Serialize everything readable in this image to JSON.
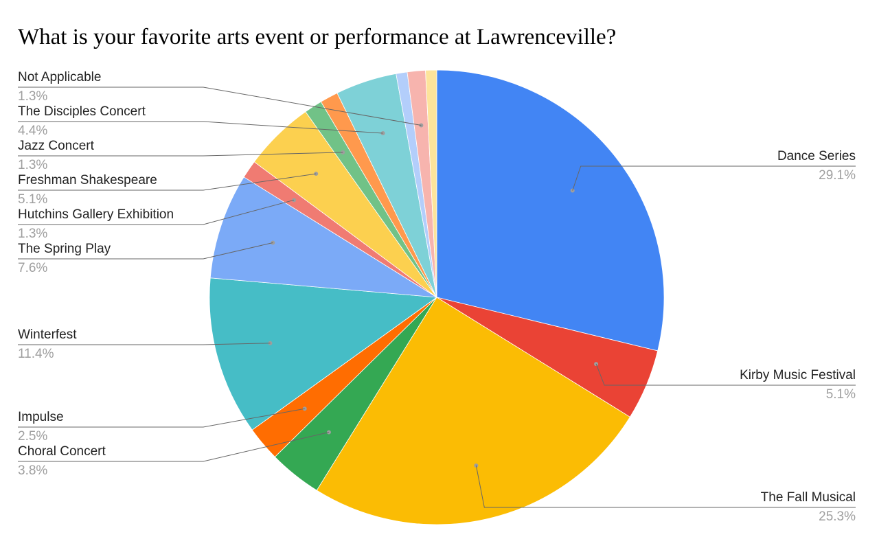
{
  "chart_data": {
    "type": "pie",
    "title": "What is your favorite arts event or performance at Lawrenceville?",
    "slices": [
      {
        "label": "Dance Series",
        "percent_label": "29.1%",
        "value": 29.1,
        "color": "#4285f4"
      },
      {
        "label": "Kirby Music Festival",
        "percent_label": "5.1%",
        "value": 5.1,
        "color": "#ea4335"
      },
      {
        "label": "The Fall Musical",
        "percent_label": "25.3%",
        "value": 25.3,
        "color": "#fbbc04"
      },
      {
        "label": "Choral Concert",
        "percent_label": "3.8%",
        "value": 3.8,
        "color": "#34a853"
      },
      {
        "label": "Impulse",
        "percent_label": "2.5%",
        "value": 2.5,
        "color": "#ff6d01"
      },
      {
        "label": "Winterfest",
        "percent_label": "11.4%",
        "value": 11.4,
        "color": "#46bdc6"
      },
      {
        "label": "The Spring Play",
        "percent_label": "7.6%",
        "value": 7.6,
        "color": "#7baaf7"
      },
      {
        "label": "Hutchins Gallery Exhibition",
        "percent_label": "1.3%",
        "value": 1.3,
        "color": "#f07b72"
      },
      {
        "label": "Freshman Shakespeare",
        "percent_label": "5.1%",
        "value": 5.1,
        "color": "#fcd04f"
      },
      {
        "label": "Jazz Concert",
        "percent_label": "1.3%",
        "value": 1.3,
        "color": "#71c287"
      },
      {
        "label": "",
        "percent_label": "",
        "value": 1.3,
        "color": "#ff994d"
      },
      {
        "label": "The Disciples Concert",
        "percent_label": "4.4%",
        "value": 4.4,
        "color": "#7ed1d7"
      },
      {
        "label": "",
        "percent_label": "",
        "value": 0.8,
        "color": "#b3cefb"
      },
      {
        "label": "Not Applicable",
        "percent_label": "1.3%",
        "value": 1.3,
        "color": "#f7b4ae"
      },
      {
        "label": "",
        "percent_label": "",
        "value": 0.8,
        "color": "#fde49b"
      }
    ],
    "legend": "none",
    "label_style": "callouts with name and percentage"
  }
}
